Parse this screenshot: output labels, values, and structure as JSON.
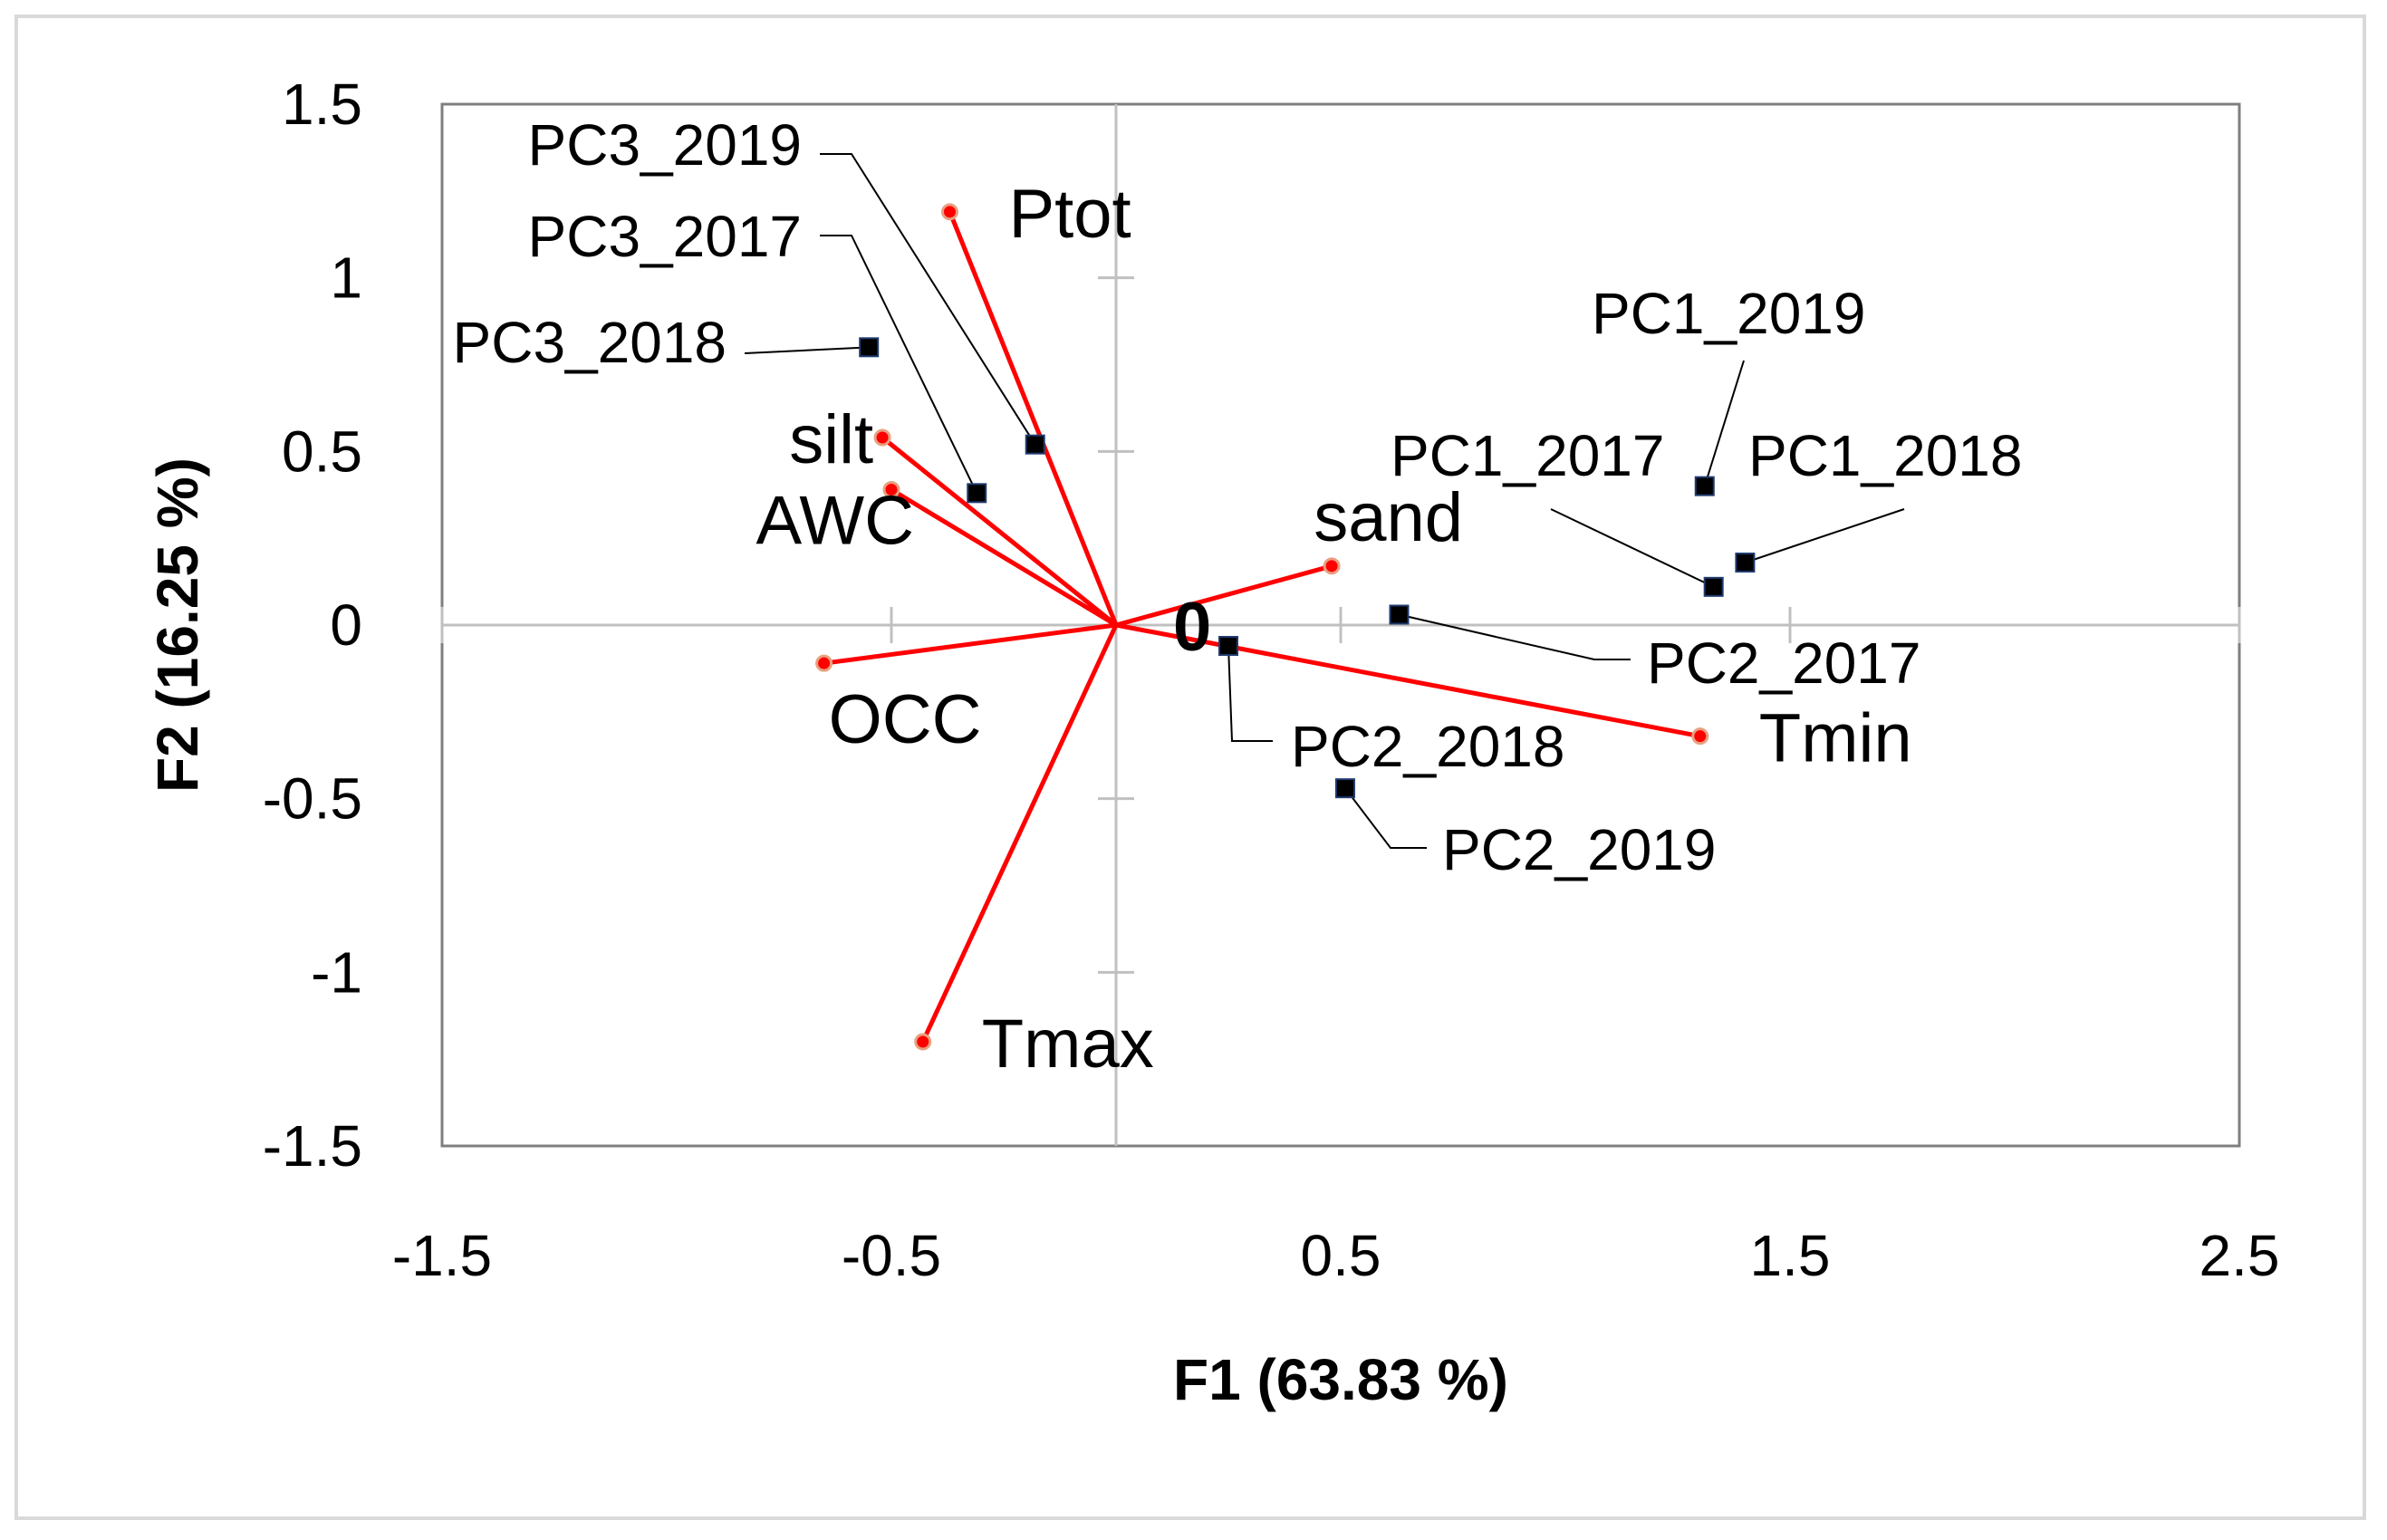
{
  "chart_data": {
    "type": "scatter",
    "xlabel": "F1 (63.83 %)",
    "ylabel": "F2 (16.25 %)",
    "xlim": [
      -1.5,
      2.5
    ],
    "ylim": [
      -1.5,
      1.5
    ],
    "x_ticks": [
      "-1.5",
      "-0.5",
      "0.5",
      "1.5",
      "2.5"
    ],
    "y_ticks": [
      "1.5",
      "1",
      "0.5",
      "0",
      "-0.5",
      "-1",
      "-1.5"
    ],
    "origin_label": "0",
    "variables": [
      {
        "name": "Ptot",
        "x": -0.37,
        "y": 1.19,
        "color": "#ff0000"
      },
      {
        "name": "silt",
        "x": -0.52,
        "y": 0.54,
        "color": "#ff0000"
      },
      {
        "name": "AWC",
        "x": -0.5,
        "y": 0.39,
        "color": "#ff0000"
      },
      {
        "name": "sand",
        "x": 0.48,
        "y": 0.17,
        "color": "#ff0000"
      },
      {
        "name": "OCC",
        "x": -0.65,
        "y": -0.11,
        "color": "#ff0000"
      },
      {
        "name": "Tmin",
        "x": 1.3,
        "y": -0.32,
        "color": "#ff0000"
      },
      {
        "name": "Tmax",
        "x": -0.43,
        "y": -1.2,
        "color": "#ff0000"
      }
    ],
    "observations": [
      {
        "name": "PC3_2019",
        "x": -0.18,
        "y": 0.52
      },
      {
        "name": "PC3_2017",
        "x": -0.31,
        "y": 0.38
      },
      {
        "name": "PC3_2018",
        "x": -0.55,
        "y": 0.8
      },
      {
        "name": "PC1_2019",
        "x": 1.31,
        "y": 0.4
      },
      {
        "name": "PC1_2017",
        "x": 1.33,
        "y": 0.11
      },
      {
        "name": "PC1_2018",
        "x": 1.4,
        "y": 0.18
      },
      {
        "name": "PC2_2017",
        "x": 0.63,
        "y": 0.03
      },
      {
        "name": "PC2_2018",
        "x": 0.25,
        "y": -0.06
      },
      {
        "name": "PC2_2019",
        "x": 0.51,
        "y": -0.47
      }
    ],
    "colors": {
      "vector": "#ff0000",
      "observation_marker": "#000000",
      "leader_line": "#000000",
      "gridline": "#c0c0c0"
    }
  }
}
